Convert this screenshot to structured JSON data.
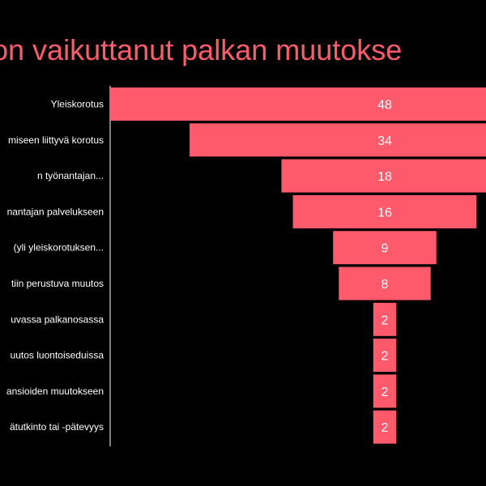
{
  "chart_data": {
    "type": "bar",
    "subtype": "funnel",
    "title": "on vaikuttanut palkan muutokse",
    "colors": {
      "bar": "#FF5A6B",
      "background": "#000000",
      "text": "#FFFFFF",
      "title": "#FF5A6B",
      "axis": "#FFFFFF"
    },
    "categories": [
      "Yleiskorotus",
      "miseen liittyvä korotus",
      "n työnantajan...",
      "nantajan palvelukseen",
      "(yli yleiskorotuksen...",
      "tiin perustuva muutos",
      "uvassa palkanosassa",
      "uutos luontoiseduissa",
      "ansioiden muutokseen",
      "ätutkinto tai -pätevyys"
    ],
    "values": [
      48,
      34,
      18,
      16,
      9,
      8,
      2,
      2,
      2,
      2
    ]
  }
}
